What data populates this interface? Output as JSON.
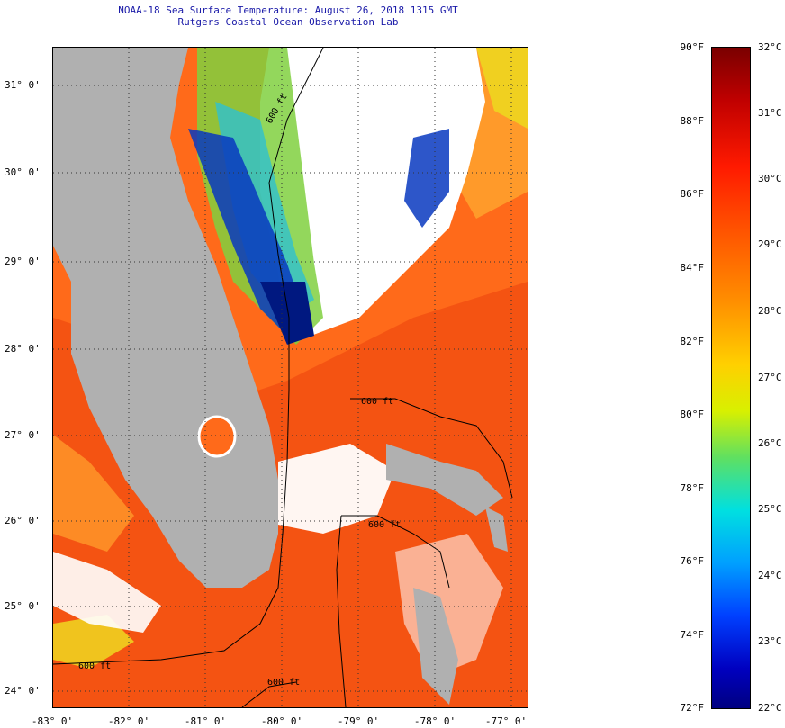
{
  "title": {
    "line1": "NOAA-18 Sea Surface Temperature:  August 26, 2018 1315 GMT",
    "line2": "Rutgers Coastal Ocean Observation Lab"
  },
  "map": {
    "lat_labels": [
      "31° 0'",
      "30° 0'",
      "29° 0'",
      "28° 0'",
      "27° 0'",
      "26° 0'",
      "25° 0'",
      "24° 0'"
    ],
    "lon_labels": [
      "-83° 0'",
      "-82° 0'",
      "-81° 0'",
      "-80° 0'",
      "-79° 0'",
      "-78° 0'",
      "-77° 0'"
    ],
    "contour_labels": [
      "600 ft",
      "600 ft",
      "600 ft",
      "600 ft",
      "600 ft"
    ],
    "colors": {
      "land": "#b0b0b0",
      "cloud": "#ffffff",
      "warm": "#ff6a1a",
      "warmer": "#f04a10",
      "orange": "#ff9a2a",
      "yellow": "#f0d020",
      "green": "#80d040",
      "cyan": "#30c0d0",
      "blue": "#0838c0",
      "deepblue": "#001880"
    }
  },
  "colorbar": {
    "fahrenheit_labels": [
      "90°F",
      "88°F",
      "86°F",
      "84°F",
      "82°F",
      "80°F",
      "78°F",
      "76°F",
      "74°F",
      "72°F"
    ],
    "celsius_labels": [
      "32°C",
      "31°C",
      "30°C",
      "29°C",
      "28°C",
      "27°C",
      "26°C",
      "25°C",
      "24°C",
      "23°C",
      "22°C"
    ]
  }
}
